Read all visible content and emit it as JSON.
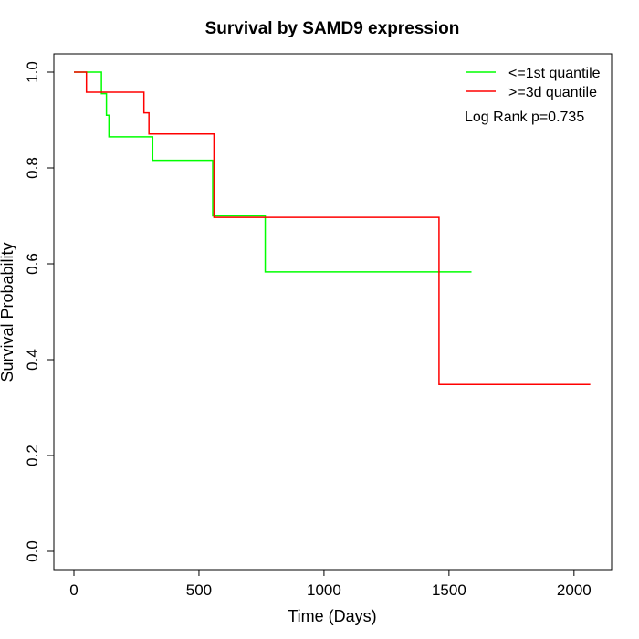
{
  "chart_data": {
    "type": "line",
    "title": "Survival by SAMD9 expression",
    "xlabel": "Time (Days)",
    "ylabel": "Survival Probability",
    "xlim": [
      0,
      2070
    ],
    "ylim": [
      0,
      1
    ],
    "x_ticks": [
      0,
      500,
      1000,
      1500,
      2000
    ],
    "x_tick_labels": [
      "0",
      "500",
      "1000",
      "1500",
      "2000"
    ],
    "y_ticks": [
      0.0,
      0.2,
      0.4,
      0.6,
      0.8,
      1.0
    ],
    "y_tick_labels": [
      "0.0",
      "0.2",
      "0.4",
      "0.6",
      "0.8",
      "1.0"
    ],
    "grid": false,
    "legend_position": "top-right",
    "annotation": "Log Rank p=0.735",
    "series": [
      {
        "name": "<=1st quantile",
        "color": "#00ff00",
        "step_points": [
          [
            0,
            1.0
          ],
          [
            110,
            0.955
          ],
          [
            130,
            0.91
          ],
          [
            140,
            0.865
          ],
          [
            315,
            0.816
          ],
          [
            555,
            0.7
          ],
          [
            765,
            0.583
          ],
          [
            1590,
            0.583
          ]
        ]
      },
      {
        "name": ">=3d quantile",
        "color": "#ff0000",
        "step_points": [
          [
            0,
            1.0
          ],
          [
            50,
            0.958
          ],
          [
            280,
            0.915
          ],
          [
            300,
            0.871
          ],
          [
            560,
            0.697
          ],
          [
            1460,
            0.348
          ],
          [
            2065,
            0.348
          ]
        ]
      }
    ]
  }
}
